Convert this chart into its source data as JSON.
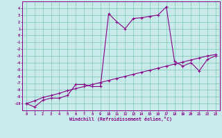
{
  "background_color": "#c8eaea",
  "grid_color": "#88ccbb",
  "line_color": "#880088",
  "x_hours": [
    0,
    1,
    2,
    3,
    4,
    5,
    6,
    7,
    8,
    9,
    10,
    11,
    12,
    13,
    14,
    15,
    16,
    17,
    18,
    19,
    20,
    21,
    22,
    23
  ],
  "windchill_line": [
    -10.0,
    -10.5,
    -9.5,
    -9.2,
    -9.2,
    -8.8,
    -7.2,
    -7.2,
    -7.5,
    -7.5,
    3.2,
    2.0,
    1.0,
    2.5,
    2.6,
    2.8,
    3.0,
    4.2,
    -3.8,
    -4.5,
    -4.0,
    -5.2,
    -3.5,
    -3.0
  ],
  "temp_line": [
    -10.0,
    -9.6,
    -9.1,
    -8.8,
    -8.5,
    -8.1,
    -7.8,
    -7.5,
    -7.2,
    -6.9,
    -6.6,
    -6.3,
    -6.0,
    -5.7,
    -5.4,
    -5.1,
    -4.8,
    -4.5,
    -4.2,
    -3.9,
    -3.6,
    -3.3,
    -3.0,
    -2.8
  ],
  "ylim": [
    -11,
    5
  ],
  "yticks": [
    4,
    3,
    2,
    1,
    0,
    -1,
    -2,
    -3,
    -4,
    -5,
    -6,
    -7,
    -8,
    -9,
    -10
  ],
  "xlabel": "Windchill (Refroidissement éolien,°C)"
}
